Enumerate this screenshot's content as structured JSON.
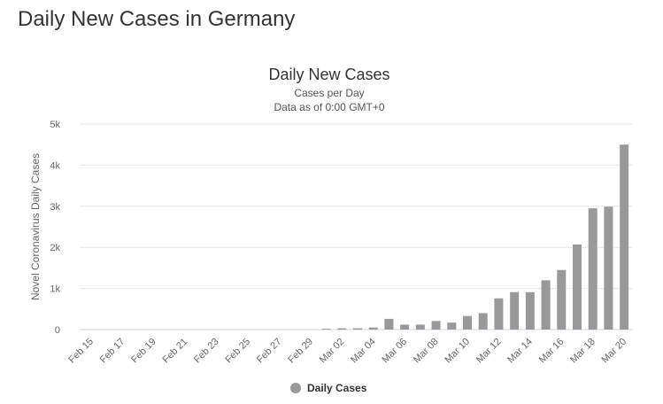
{
  "page": {
    "title": "Daily New Cases in Germany"
  },
  "chart_data": {
    "type": "bar",
    "title": "Daily New Cases",
    "subtitle": [
      "Cases per Day",
      "Data as of 0:00 GMT+0"
    ],
    "ylabel": "Novel Coronavirus Daily Cases",
    "xlabel": "",
    "ylim": [
      0,
      5000
    ],
    "yticks": [
      0,
      1000,
      2000,
      3000,
      4000,
      5000
    ],
    "ytick_labels": [
      "0",
      "1k",
      "2k",
      "3k",
      "4k",
      "5k"
    ],
    "grid": true,
    "legend_position": "bottom",
    "bar_color": "#999999",
    "categories": [
      "Feb 15",
      "Feb 16",
      "Feb 17",
      "Feb 18",
      "Feb 19",
      "Feb 20",
      "Feb 21",
      "Feb 22",
      "Feb 23",
      "Feb 24",
      "Feb 25",
      "Feb 26",
      "Feb 27",
      "Feb 28",
      "Feb 29",
      "Mar 01",
      "Mar 02",
      "Mar 03",
      "Mar 04",
      "Mar 05",
      "Mar 06",
      "Mar 07",
      "Mar 08",
      "Mar 09",
      "Mar 10",
      "Mar 11",
      "Mar 12",
      "Mar 13",
      "Mar 14",
      "Mar 15",
      "Mar 16",
      "Mar 17",
      "Mar 18",
      "Mar 19",
      "Mar 20"
    ],
    "xtick_labels": [
      "Feb 15",
      "Feb 17",
      "Feb 19",
      "Feb 21",
      "Feb 23",
      "Feb 25",
      "Feb 27",
      "Feb 29",
      "Mar 02",
      "Mar 04",
      "Mar 06",
      "Mar 08",
      "Mar 10",
      "Mar 12",
      "Mar 14",
      "Mar 16",
      "Mar 18",
      "Mar 20"
    ],
    "series": [
      {
        "name": "Daily Cases",
        "values": [
          0,
          0,
          0,
          0,
          0,
          0,
          0,
          0,
          0,
          0,
          0,
          0,
          0,
          0,
          0,
          20,
          30,
          30,
          50,
          260,
          120,
          120,
          210,
          170,
          330,
          400,
          760,
          910,
          910,
          1200,
          1450,
          2070,
          2950,
          2990,
          4500
        ]
      }
    ]
  }
}
